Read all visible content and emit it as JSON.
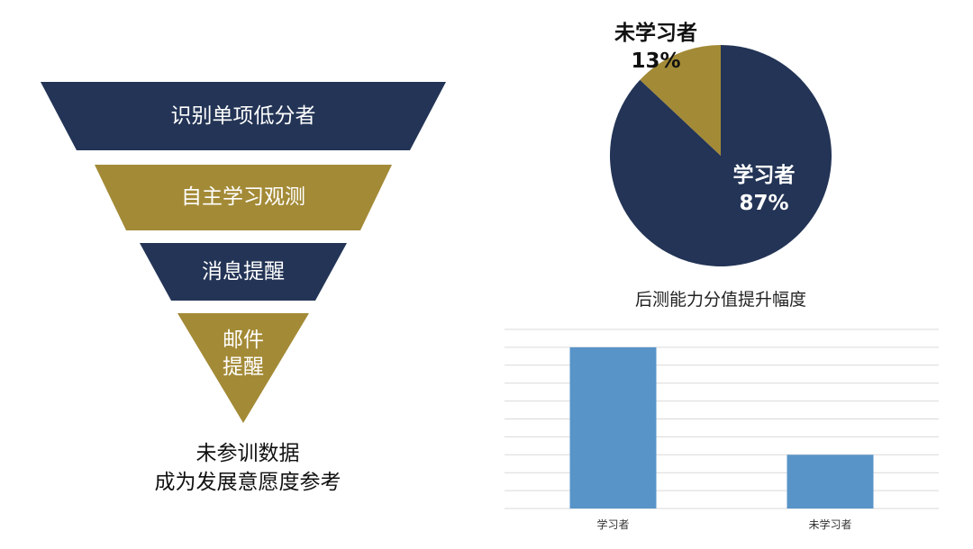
{
  "funnel": {
    "levels": [
      {
        "label": "识别单项低分者",
        "color": "#233456"
      },
      {
        "label": "自主学习观测",
        "color": "#A38A36"
      },
      {
        "label": "消息提醒",
        "color": "#233456"
      },
      {
        "label_lines": [
          "邮件",
          "提醒"
        ],
        "color": "#A38A36"
      }
    ],
    "caption_lines": [
      "未参训数据",
      "成为发展意愿度参考"
    ]
  },
  "chart_data": [
    {
      "type": "pie",
      "slices": [
        {
          "label": "学习者",
          "value": 87,
          "percent_text": "87%",
          "color": "#233456",
          "text_color": "#ffffff"
        },
        {
          "label": "未学习者",
          "value": 13,
          "percent_text": "13%",
          "color": "#A38A36",
          "text_color": "#111111"
        }
      ]
    },
    {
      "type": "bar",
      "title": "后测能力分值提升幅度",
      "categories": [
        "学习者",
        "未学习者"
      ],
      "values": [
        9,
        3
      ],
      "ylim": [
        0,
        10
      ],
      "grid": true,
      "bar_color": "#5894C8",
      "grid_color": "#D9D9D9"
    }
  ]
}
